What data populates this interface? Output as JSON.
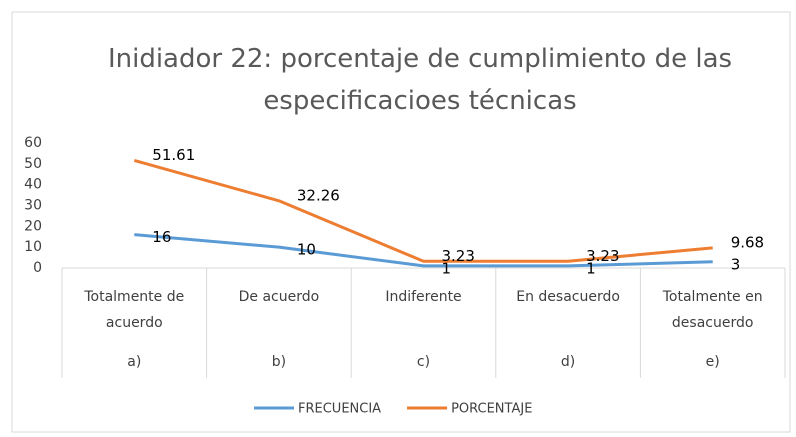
{
  "chart_data": {
    "type": "line",
    "title": "Inidiador 22: porcentaje de cumplimiento de las especificacioes técnicas",
    "categories": [
      "Totalmente de acuerdo",
      "De acuerdo",
      "Indiferente",
      "En desacuerdo",
      "Totalmente en desacuerdo"
    ],
    "subcategories": [
      "a)",
      "b)",
      "c)",
      "d)",
      "e)"
    ],
    "series": [
      {
        "name": "FRECUENCIA",
        "color": "#5b9bd5",
        "values": [
          16,
          10,
          1,
          1,
          3
        ]
      },
      {
        "name": "PORCENTAJE",
        "color": "#ed7d31",
        "values": [
          51.61,
          32.26,
          3.23,
          3.23,
          9.68
        ]
      }
    ],
    "ylim": [
      0,
      60
    ],
    "yticks": [
      0,
      10,
      20,
      30,
      40,
      50,
      60
    ],
    "grid": false,
    "legend": "bottom",
    "data_labels": true
  }
}
